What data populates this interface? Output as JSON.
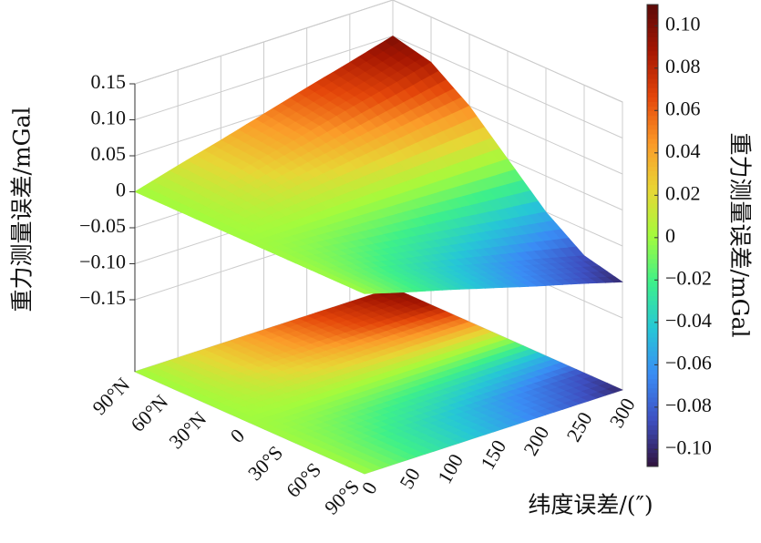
{
  "chart_data": {
    "type": "surface3d",
    "zlabel": "重力测量误差/mGal",
    "ylabel": "纬度误差/(″)",
    "categories": [
      "90°N",
      "60°N",
      "30°N",
      "0",
      "30°S",
      "60°S",
      "90°S"
    ],
    "y": [
      0,
      50,
      100,
      150,
      200,
      250,
      300
    ],
    "ylim": [
      0,
      300
    ],
    "yticks": [
      0,
      50,
      100,
      150,
      200,
      250,
      300
    ],
    "zlim": [
      -0.25,
      0.15
    ],
    "zticks": [
      0.15,
      {
        "value": 0.1,
        "label": "0.10"
      },
      0.05,
      0,
      {
        "value": -0.05,
        "label": "−0.05"
      },
      {
        "value": -0.1,
        "label": "−0.10"
      },
      {
        "value": -0.15,
        "label": "−0.15"
      }
    ],
    "z": [
      [
        0,
        0.017,
        0.033,
        0.05,
        0.067,
        0.083,
        0.1
      ],
      [
        0,
        0.014,
        0.029,
        0.043,
        0.058,
        0.072,
        0.087
      ],
      [
        0,
        0.008,
        0.017,
        0.025,
        0.033,
        0.042,
        0.05
      ],
      [
        0,
        0,
        0,
        0,
        0,
        0,
        0
      ],
      [
        0,
        -0.008,
        -0.017,
        -0.025,
        -0.033,
        -0.042,
        -0.05
      ],
      [
        0,
        -0.014,
        -0.029,
        -0.043,
        -0.058,
        -0.072,
        -0.087
      ],
      [
        0,
        -0.017,
        -0.033,
        -0.05,
        -0.067,
        -0.083,
        -0.1
      ]
    ],
    "grid": true,
    "colormap": [
      "#30123b",
      "#3e4fc0",
      "#3a8cf5",
      "#26c7d6",
      "#3ef08a",
      "#a4fb3c",
      "#e8d635",
      "#fb9a29",
      "#e4460a",
      "#a51602",
      "#5c0a08"
    ],
    "colorbar": {
      "label": "重力测量误差/mGal",
      "lim": [
        -0.108,
        0.11
      ],
      "ticks": [
        {
          "value": 0.1,
          "label": "0.10"
        },
        0.08,
        0.06,
        0.04,
        0.02,
        0,
        {
          "value": -0.02,
          "label": "−0.02"
        },
        {
          "value": -0.04,
          "label": "−0.04"
        },
        {
          "value": -0.06,
          "label": "−0.06"
        },
        {
          "value": -0.08,
          "label": "−0.08"
        },
        {
          "value": -0.1,
          "label": "−0.10"
        }
      ]
    }
  }
}
